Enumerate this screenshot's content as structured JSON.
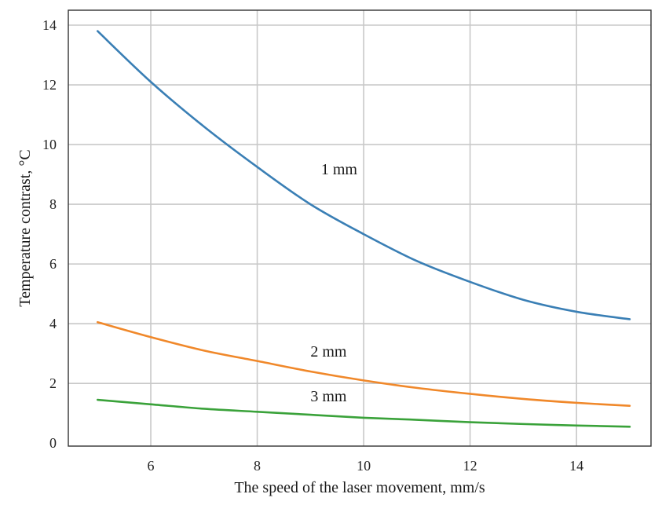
{
  "chart_data": {
    "type": "line",
    "title": "",
    "xlabel": "The speed of the laser movement, mm/s",
    "ylabel": "Temperature contrast, °C",
    "xlim": [
      4.45,
      15.4
    ],
    "ylim": [
      -0.1,
      14.5
    ],
    "x_ticks": [
      6,
      8,
      10,
      12,
      14
    ],
    "y_ticks": [
      0,
      2,
      4,
      6,
      8,
      10,
      12,
      14
    ],
    "grid": true,
    "x": [
      5,
      6,
      7,
      8,
      9,
      10,
      11,
      12,
      13,
      14,
      15
    ],
    "series": [
      {
        "name": "1 mm",
        "color": "#3a7fb5",
        "values": [
          13.8,
          12.1,
          10.6,
          9.25,
          8.0,
          7.0,
          6.1,
          5.4,
          4.8,
          4.4,
          4.15
        ]
      },
      {
        "name": "2 mm",
        "color": "#f0882a",
        "values": [
          4.05,
          3.55,
          3.1,
          2.75,
          2.4,
          2.1,
          1.85,
          1.65,
          1.48,
          1.35,
          1.25
        ]
      },
      {
        "name": "3 mm",
        "color": "#3aa23a",
        "values": [
          1.45,
          1.3,
          1.15,
          1.05,
          0.95,
          0.85,
          0.78,
          0.7,
          0.64,
          0.59,
          0.55
        ]
      }
    ],
    "annotations": [
      {
        "text": "1 mm",
        "series": "1 mm",
        "x": 9.2,
        "y": 9.0
      },
      {
        "text": "2 mm",
        "series": "2 mm",
        "x": 9.0,
        "y": 2.9
      },
      {
        "text": "3 mm",
        "series": "3 mm",
        "x": 9.0,
        "y": 1.4
      }
    ]
  }
}
